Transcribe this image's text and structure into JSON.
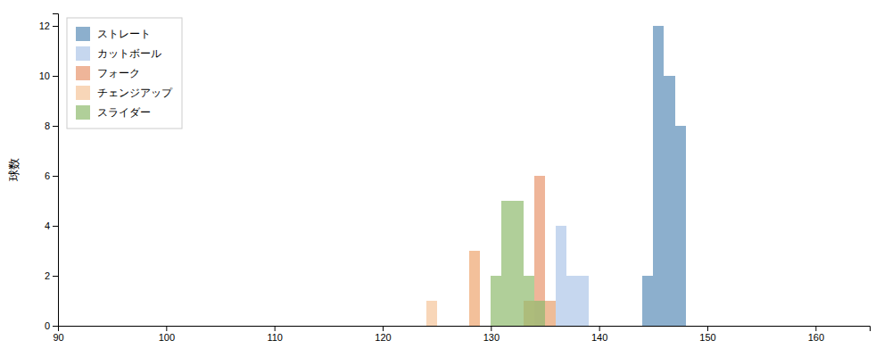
{
  "chart_data": {
    "type": "histogram",
    "ylabel": "球数",
    "xlim": [
      90,
      165
    ],
    "ylim": [
      0,
      12.5
    ],
    "xticks": [
      90,
      100,
      110,
      120,
      130,
      140,
      150,
      160
    ],
    "yticks": [
      0,
      2,
      4,
      6,
      8,
      10,
      12
    ],
    "grid": false,
    "legend": "upper left",
    "bins": [
      90,
      91,
      92,
      93,
      94,
      95,
      96,
      97,
      98,
      99,
      100,
      101,
      102,
      103,
      104,
      105,
      106,
      107,
      108,
      109,
      110,
      111,
      112,
      113,
      114,
      115,
      116,
      117,
      118,
      119,
      120,
      121,
      122,
      123,
      124,
      125,
      126,
      127,
      128,
      129,
      130,
      131,
      132,
      133,
      134,
      135,
      136,
      137,
      138,
      139,
      140,
      141,
      142,
      143,
      144,
      145,
      146,
      147,
      148,
      149,
      150,
      151,
      152,
      153,
      154,
      155,
      156,
      157,
      158,
      159,
      160,
      161,
      162,
      163,
      164,
      165
    ],
    "series": [
      {
        "name": "ストレート",
        "color": "#5b8db8",
        "values": [
          0,
          0,
          0,
          0,
          0,
          0,
          0,
          0,
          0,
          0,
          0,
          0,
          0,
          0,
          0,
          0,
          0,
          0,
          0,
          0,
          0,
          0,
          0,
          0,
          0,
          0,
          0,
          0,
          0,
          0,
          0,
          0,
          0,
          0,
          0,
          0,
          0,
          0,
          0,
          0,
          0,
          0,
          0,
          0,
          0,
          0,
          0,
          0,
          0,
          0,
          0,
          0,
          0,
          0,
          2,
          12,
          10,
          8,
          0,
          0,
          0,
          0,
          0,
          0,
          0,
          0,
          0,
          0,
          0,
          0,
          0,
          0,
          0,
          0,
          0
        ]
      },
      {
        "name": "カットボール",
        "color": "#aec6e8",
        "values": [
          0,
          0,
          0,
          0,
          0,
          0,
          0,
          0,
          0,
          0,
          0,
          0,
          0,
          0,
          0,
          0,
          0,
          0,
          0,
          0,
          0,
          0,
          0,
          0,
          0,
          0,
          0,
          0,
          0,
          0,
          0,
          0,
          0,
          0,
          0,
          0,
          0,
          0,
          0,
          0,
          0,
          0,
          0,
          0,
          0,
          1,
          4,
          2,
          2,
          0,
          0,
          0,
          0,
          0,
          0,
          0,
          0,
          0,
          0,
          0,
          0,
          0,
          0,
          0,
          0,
          0,
          0,
          0,
          0,
          0,
          0,
          0,
          0,
          0,
          0
        ]
      },
      {
        "name": "フォーク",
        "color": "#e8956d",
        "values": [
          0,
          0,
          0,
          0,
          0,
          0,
          0,
          0,
          0,
          0,
          0,
          0,
          0,
          0,
          0,
          0,
          0,
          0,
          0,
          0,
          0,
          0,
          0,
          0,
          0,
          0,
          0,
          0,
          0,
          0,
          0,
          0,
          0,
          0,
          0,
          0,
          0,
          0,
          3,
          0,
          0,
          0,
          0,
          1,
          6,
          1,
          0,
          0,
          0,
          0,
          0,
          0,
          0,
          0,
          0,
          0,
          0,
          0,
          0,
          0,
          0,
          0,
          0,
          0,
          0,
          0,
          0,
          0,
          0,
          0,
          0,
          0,
          0,
          0,
          0
        ]
      },
      {
        "name": "チェンジアップ",
        "color": "#f5c49a",
        "values": [
          0,
          0,
          0,
          0,
          0,
          0,
          0,
          0,
          0,
          0,
          0,
          0,
          0,
          0,
          0,
          0,
          0,
          0,
          0,
          0,
          0,
          0,
          0,
          0,
          0,
          0,
          0,
          0,
          0,
          0,
          0,
          0,
          0,
          0,
          1,
          0,
          0,
          0,
          3,
          0,
          0,
          0,
          0,
          1,
          0,
          1,
          0,
          0,
          0,
          0,
          0,
          0,
          0,
          0,
          0,
          0,
          0,
          0,
          0,
          0,
          0,
          0,
          0,
          0,
          0,
          0,
          0,
          0,
          0,
          0,
          0,
          0,
          0,
          0,
          0
        ]
      },
      {
        "name": "スライダー",
        "color": "#8fba6e",
        "values": [
          0,
          0,
          0,
          0,
          0,
          0,
          0,
          0,
          0,
          0,
          0,
          0,
          0,
          0,
          0,
          0,
          0,
          0,
          0,
          0,
          0,
          0,
          0,
          0,
          0,
          0,
          0,
          0,
          0,
          0,
          0,
          0,
          0,
          0,
          0,
          0,
          0,
          0,
          0,
          0,
          2,
          5,
          5,
          2,
          1,
          0,
          0,
          0,
          0,
          0,
          0,
          0,
          0,
          0,
          0,
          0,
          0,
          0,
          0,
          0,
          0,
          0,
          0,
          0,
          0,
          0,
          0,
          0,
          0,
          0,
          0,
          0,
          0,
          0,
          0
        ]
      }
    ]
  }
}
